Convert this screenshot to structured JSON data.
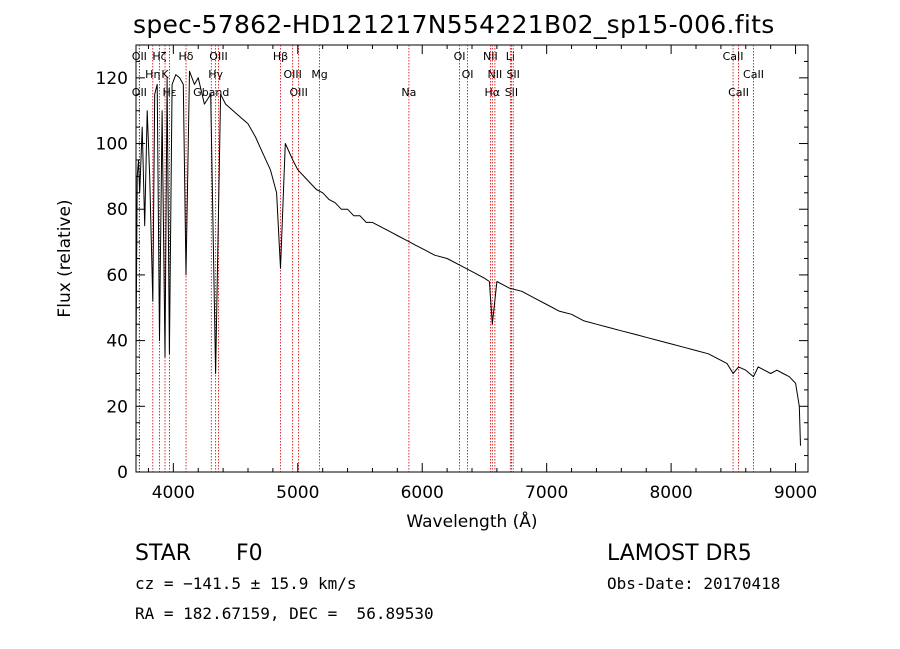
{
  "title": "spec-57862-HD121217N554221B02_sp15-006.fits",
  "footer": {
    "class_label": "STAR",
    "subclass": "F0",
    "survey": "LAMOST DR5",
    "cz": "cz = −141.5 ± 15.9 km/s",
    "obs_date": "Obs-Date: 20170418",
    "coords": "RA = 182.67159, DEC =  56.89530"
  },
  "colors": {
    "line": "#000000",
    "marker": "#cc0000",
    "background": "#ffffff"
  },
  "chart_data": {
    "type": "line",
    "title": "spec-57862-HD121217N554221B02_sp15-006.fits",
    "xlabel": "Wavelength (Å)",
    "ylabel": "Flux (relative)",
    "xlim": [
      3700,
      9100
    ],
    "ylim": [
      0,
      130
    ],
    "xticks": [
      4000,
      5000,
      6000,
      7000,
      8000,
      9000
    ],
    "yticks": [
      0,
      20,
      40,
      60,
      80,
      100,
      120
    ],
    "grid": false,
    "series": [
      {
        "x": [
          3700,
          3710,
          3720,
          3730,
          3750,
          3770,
          3790,
          3810,
          3835,
          3850,
          3870,
          3889,
          3910,
          3933,
          3950,
          3968,
          3990,
          4020,
          4050,
          4080,
          4102,
          4130,
          4170,
          4200,
          4250,
          4300,
          4340,
          4380,
          4420,
          4480,
          4540,
          4600,
          4660,
          4720,
          4780,
          4830,
          4861,
          4900,
          4960,
          5000,
          5050,
          5100,
          5150,
          5200,
          5250,
          5300,
          5350,
          5400,
          5450,
          5500,
          5550,
          5600,
          5650,
          5700,
          5750,
          5800,
          5850,
          5900,
          5950,
          6000,
          6100,
          6200,
          6300,
          6400,
          6500,
          6540,
          6563,
          6600,
          6650,
          6700,
          6800,
          6900,
          7000,
          7100,
          7200,
          7300,
          7400,
          7500,
          7600,
          7700,
          7800,
          7900,
          8000,
          8100,
          8200,
          8300,
          8400,
          8450,
          8498,
          8542,
          8600,
          8662,
          8700,
          8750,
          8800,
          8850,
          8900,
          8950,
          9000,
          9030,
          9040
        ],
        "y": [
          35,
          90,
          95,
          85,
          105,
          75,
          110,
          90,
          52,
          115,
          118,
          40,
          110,
          35,
          120,
          36,
          118,
          121,
          120,
          118,
          60,
          122,
          118,
          120,
          112,
          115,
          30,
          115,
          112,
          110,
          108,
          106,
          102,
          97,
          92,
          85,
          62,
          100,
          95,
          92,
          90,
          88,
          86,
          85,
          83,
          82,
          80,
          80,
          78,
          78,
          76,
          76,
          75,
          74,
          73,
          72,
          71,
          70,
          69,
          68,
          66,
          65,
          63,
          61,
          59,
          58,
          45,
          58,
          57,
          56,
          55,
          53,
          51,
          49,
          48,
          46,
          45,
          44,
          43,
          42,
          41,
          40,
          39,
          38,
          37,
          36,
          34,
          33,
          30,
          32,
          31,
          29,
          32,
          31,
          30,
          31,
          30,
          29,
          27,
          20,
          8
        ]
      }
    ],
    "annotations": [
      {
        "label": "Hδ",
        "x": 4102
      },
      {
        "label": "K",
        "x": 3933
      },
      {
        "label": "Hε",
        "x": 3970
      },
      {
        "label": "OII",
        "x": 3727
      },
      {
        "label": "Hη",
        "x": 3835
      },
      {
        "label": "OII",
        "x": 3727
      },
      {
        "label": "Hζ",
        "x": 3889
      },
      {
        "label": "Hγ",
        "x": 4340
      },
      {
        "label": "Gband",
        "x": 4305
      },
      {
        "label": "OIII",
        "x": 4363
      },
      {
        "label": "OIII",
        "x": 4959
      },
      {
        "label": "OIII",
        "x": 5007
      },
      {
        "label": "Hβ",
        "x": 4861
      },
      {
        "label": "Mg",
        "x": 5175
      },
      {
        "label": "Na",
        "x": 5893
      },
      {
        "label": "OI",
        "x": 6300
      },
      {
        "label": "OI",
        "x": 6364
      },
      {
        "label": "Hα",
        "x": 6563
      },
      {
        "label": "NII",
        "x": 6548
      },
      {
        "label": "NII",
        "x": 6584
      },
      {
        "label": "SII",
        "x": 6717
      },
      {
        "label": "Li",
        "x": 6708
      },
      {
        "label": "SII",
        "x": 6731
      },
      {
        "label": "CaII",
        "x": 8542
      },
      {
        "label": "CaII",
        "x": 8498
      },
      {
        "label": "CaII",
        "x": 8662
      }
    ]
  }
}
